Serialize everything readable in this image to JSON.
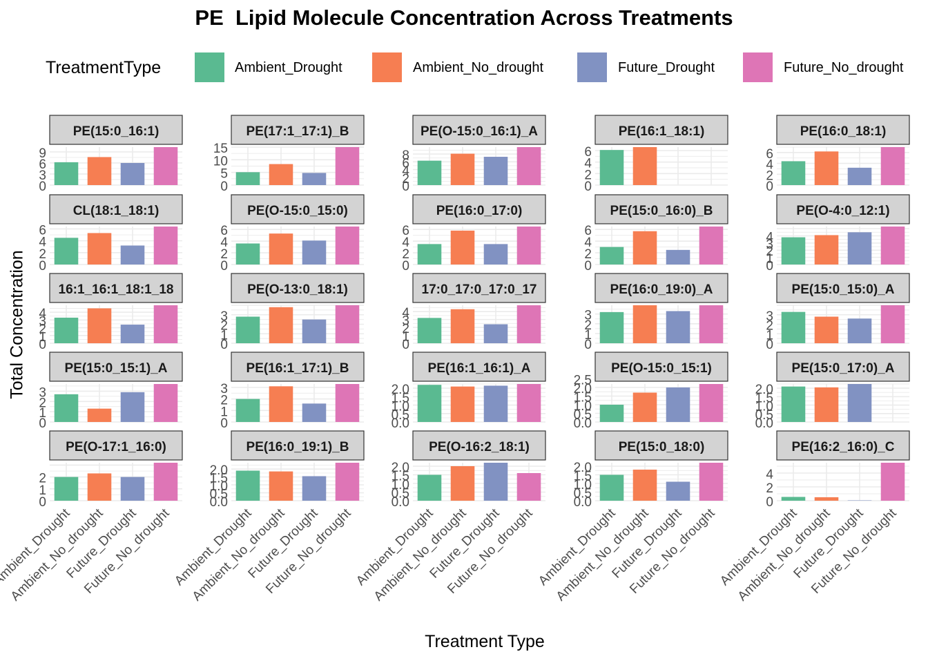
{
  "title": "PE  Lipid Molecule Concentration Across Treatments",
  "legend": {
    "title": "TreatmentType",
    "items": [
      {
        "label": "Ambient_Drought",
        "color": "#5ABA91"
      },
      {
        "label": "Ambient_No_drought",
        "color": "#F67E52"
      },
      {
        "label": "Future_Drought",
        "color": "#8192C2"
      },
      {
        "label": "Future_No_drought",
        "color": "#DE75B6"
      }
    ]
  },
  "chart_data": {
    "type": "bar",
    "title": "PE  Lipid Molecule Concentration Across Treatments",
    "xlabel": "Treatment Type",
    "ylabel": "Total Concentration",
    "categories": [
      "Ambient_Drought",
      "Ambient_No_drought",
      "Future_Drought",
      "Future_No_drought"
    ],
    "colors": [
      "#5ABA91",
      "#F67E52",
      "#8192C2",
      "#DE75B6"
    ],
    "grid": true,
    "legend_position": "top",
    "facets": [
      {
        "label": "PE(15:0_16:1)",
        "values": [
          6.2,
          7.6,
          6.0,
          10.3
        ],
        "ylim": [
          0,
          10.3
        ],
        "ticks": [
          "0",
          "3",
          "6",
          "9"
        ]
      },
      {
        "label": "PE(17:1_17:1)_B",
        "values": [
          5.1,
          8.3,
          4.8,
          15.0
        ],
        "ylim": [
          0,
          15.0
        ],
        "ticks": [
          "0",
          "5",
          "10",
          "15"
        ]
      },
      {
        "label": "PE(O-15:0_16:1)_A",
        "values": [
          6.3,
          8.1,
          7.3,
          9.8
        ],
        "ylim": [
          0,
          9.8
        ],
        "ticks": [
          "0",
          "2",
          "4",
          "6",
          "8"
        ]
      },
      {
        "label": "PE(16:1_18:1)",
        "values": [
          6.1,
          6.6,
          null,
          null
        ],
        "ylim": [
          0,
          6.6
        ],
        "ticks": [
          "0",
          "2",
          "4",
          "6"
        ]
      },
      {
        "label": "PE(16:0_18:1)",
        "values": [
          4.4,
          6.2,
          3.2,
          7.0
        ],
        "ylim": [
          0,
          7.0
        ],
        "ticks": [
          "0",
          "2",
          "4",
          "6"
        ]
      },
      {
        "label": "CL(18:1_18:1)",
        "values": [
          4.5,
          5.3,
          3.2,
          6.4
        ],
        "ylim": [
          0,
          6.4
        ],
        "ticks": [
          "0",
          "2",
          "4",
          "6"
        ]
      },
      {
        "label": "PE(O-15:0_15:0)",
        "values": [
          3.6,
          5.3,
          4.1,
          6.5
        ],
        "ylim": [
          0,
          6.5
        ],
        "ticks": [
          "0",
          "2",
          "4",
          "6"
        ]
      },
      {
        "label": "PE(16:0_17:0)",
        "values": [
          3.5,
          5.8,
          3.5,
          6.5
        ],
        "ylim": [
          0,
          6.5
        ],
        "ticks": [
          "0",
          "2",
          "4",
          "6"
        ]
      },
      {
        "label": "PE(15:0_16:0)_B",
        "values": [
          3.0,
          5.7,
          2.5,
          6.5
        ],
        "ylim": [
          0,
          6.5
        ],
        "ticks": [
          "0",
          "2",
          "4",
          "6"
        ]
      },
      {
        "label": "PE(O-4:0_12:1)",
        "values": [
          3.8,
          4.1,
          4.5,
          5.3
        ],
        "ylim": [
          0,
          5.3
        ],
        "ticks": [
          "0",
          "1",
          "2",
          "3",
          "4"
        ]
      },
      {
        "label": "16:1_16:1_18:1_18",
        "values": [
          3.3,
          4.5,
          2.4,
          4.9
        ],
        "ylim": [
          0,
          4.9
        ],
        "ticks": [
          "0",
          "1",
          "2",
          "3",
          "4"
        ]
      },
      {
        "label": "PE(O-13:0_18:1)",
        "values": [
          2.8,
          3.8,
          2.5,
          4.0
        ],
        "ylim": [
          0,
          4.0
        ],
        "ticks": [
          "0",
          "1",
          "2",
          "3"
        ]
      },
      {
        "label": "17:0_17:0_17:0_17",
        "values": [
          3.2,
          4.3,
          2.4,
          4.8
        ],
        "ylim": [
          0,
          4.8
        ],
        "ticks": [
          "0",
          "1",
          "2",
          "3",
          "4"
        ]
      },
      {
        "label": "PE(16:0_19:0)_A",
        "values": [
          3.2,
          3.9,
          3.3,
          3.9
        ],
        "ylim": [
          0,
          3.9
        ],
        "ticks": [
          "0",
          "1",
          "2",
          "3"
        ]
      },
      {
        "label": "PE(15:0_15:0)_A",
        "values": [
          3.3,
          2.8,
          2.6,
          4.0
        ],
        "ylim": [
          0,
          4.0
        ],
        "ticks": [
          "0",
          "1",
          "2",
          "3"
        ]
      },
      {
        "label": "PE(15:0_15:1)_A",
        "values": [
          2.7,
          1.3,
          2.9,
          3.7
        ],
        "ylim": [
          0,
          3.7
        ],
        "ticks": [
          "0",
          "1",
          "2",
          "3"
        ]
      },
      {
        "label": "PE(16:1_17:1)_B",
        "values": [
          2.0,
          3.1,
          1.6,
          3.3
        ],
        "ylim": [
          0,
          3.3
        ],
        "ticks": [
          "0",
          "1",
          "2",
          "3"
        ]
      },
      {
        "label": "PE(16:1_16:1)_A",
        "values": [
          2.2,
          2.1,
          2.15,
          2.25
        ],
        "ylim": [
          0,
          2.25
        ],
        "ticks": [
          "0.0",
          "0.5",
          "1.0",
          "1.5",
          "2.0"
        ]
      },
      {
        "label": "PE(O-15:0_15:1)",
        "values": [
          1.0,
          1.7,
          2.0,
          2.2
        ],
        "ylim": [
          0,
          2.2
        ],
        "ticks": [
          "0.0",
          "0.5",
          "1.0",
          "1.5",
          "2.0",
          "2.5"
        ]
      },
      {
        "label": "PE(15:0_17:0)_A",
        "values": [
          2.1,
          2.05,
          2.25,
          null
        ],
        "ylim": [
          0,
          2.25
        ],
        "ticks": [
          "0.0",
          "0.5",
          "1.0",
          "1.5",
          "2.0"
        ]
      },
      {
        "label": "PE(O-17:1_16:0)",
        "values": [
          2.0,
          2.3,
          2.0,
          3.2
        ],
        "ylim": [
          0,
          3.2
        ],
        "ticks": [
          "0",
          "1",
          "2"
        ]
      },
      {
        "label": "PE(16:0_19:1)_B",
        "values": [
          1.9,
          1.85,
          1.55,
          2.4
        ],
        "ylim": [
          0,
          2.4
        ],
        "ticks": [
          "0.0",
          "0.5",
          "1.0",
          "1.5",
          "2.0"
        ]
      },
      {
        "label": "PE(O-16:2_18:1)",
        "values": [
          1.5,
          2.0,
          2.2,
          1.6
        ],
        "ylim": [
          0,
          2.2
        ],
        "ticks": [
          "0.0",
          "0.5",
          "1.0",
          "1.5",
          "2.0"
        ]
      },
      {
        "label": "PE(15:0_18:0)",
        "values": [
          1.5,
          1.8,
          1.1,
          2.2
        ],
        "ylim": [
          0,
          2.2
        ],
        "ticks": [
          "0.0",
          "0.5",
          "1.0",
          "1.5",
          "2.0"
        ]
      },
      {
        "label": "PE(16:2_16:0)_C",
        "values": [
          0.55,
          0.5,
          0.05,
          5.5
        ],
        "ylim": [
          0,
          5.5
        ],
        "ticks": [
          "0",
          "2",
          "4"
        ]
      }
    ]
  }
}
